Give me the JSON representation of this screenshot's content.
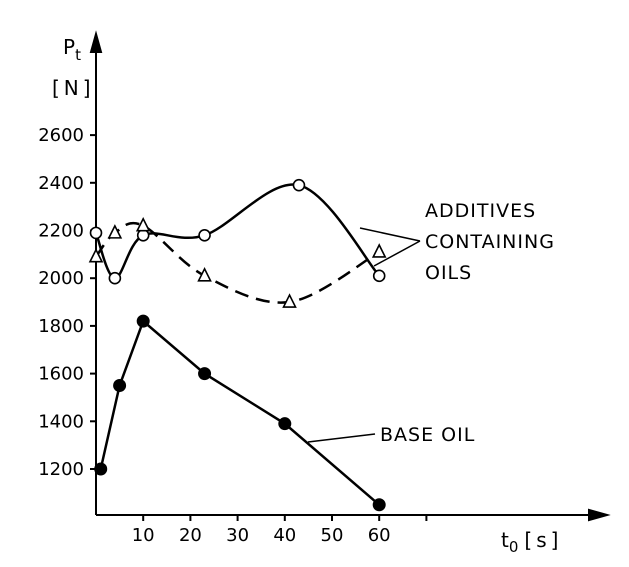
{
  "chart_data": {
    "type": "line",
    "y_title": "P",
    "y_title_sub": "t",
    "y_unit": "[N]",
    "x_title": "t",
    "x_title_sub": "0",
    "x_unit": "[s]",
    "xlim": [
      0,
      70
    ],
    "ylim": [
      1050,
      2800
    ],
    "x_ticks": [
      10,
      20,
      30,
      40,
      50,
      60
    ],
    "y_ticks": [
      1200,
      1400,
      1600,
      1800,
      2000,
      2200,
      2400,
      2600
    ],
    "series": [
      {
        "marker": "circle-open",
        "line": "solid",
        "points": [
          [
            0,
            2190
          ],
          [
            4,
            2000
          ],
          [
            10,
            2180
          ],
          [
            23,
            2180
          ],
          [
            43,
            2390
          ],
          [
            60,
            2010
          ]
        ]
      },
      {
        "marker": "triangle-open",
        "line": "dashed",
        "points": [
          [
            0,
            2090
          ],
          [
            4,
            2190
          ],
          [
            10,
            2220
          ],
          [
            23,
            2010
          ],
          [
            41,
            1900
          ],
          [
            60,
            2110
          ]
        ]
      },
      {
        "marker": "circle-filled",
        "line": "solid",
        "points": [
          [
            1,
            1200
          ],
          [
            5,
            1550
          ],
          [
            10,
            1820
          ],
          [
            23,
            1600
          ],
          [
            40,
            1390
          ],
          [
            60,
            1050
          ]
        ]
      }
    ],
    "annotations": [
      {
        "lines": [
          "ADDITIVES",
          "CONTAINING",
          "OILS"
        ]
      },
      {
        "lines": [
          "BASE OIL"
        ]
      }
    ]
  }
}
